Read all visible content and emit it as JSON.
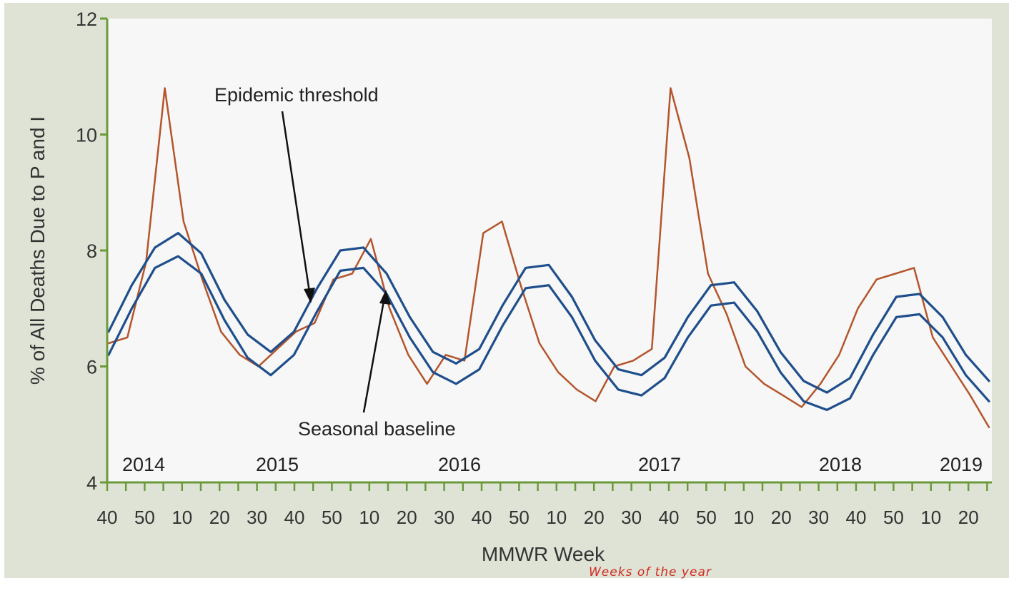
{
  "chart_data": {
    "type": "line",
    "ylabel": "% of All Deaths Due to P and I",
    "xlabel": "MMWR Week",
    "ylim": [
      4,
      12
    ],
    "y_ticks": [
      4,
      6,
      8,
      10,
      12
    ],
    "x_tick_labels": [
      "40",
      "50",
      "10",
      "20",
      "30",
      "40",
      "50",
      "10",
      "20",
      "30",
      "40",
      "50",
      "10",
      "20",
      "30",
      "40",
      "50",
      "10",
      "20",
      "30",
      "40",
      "50",
      "10",
      "20"
    ],
    "year_labels": [
      "2014",
      "2015",
      "2016",
      "2017",
      "2018",
      "2019"
    ],
    "grid": false,
    "series": [
      {
        "name": "Epidemic threshold",
        "color": "#1f4e8c",
        "values": [
          6.6,
          7.4,
          8.05,
          8.3,
          7.95,
          7.15,
          6.55,
          6.25,
          6.6,
          7.35,
          8.0,
          8.05,
          7.6,
          6.85,
          6.25,
          6.05,
          6.3,
          7.05,
          7.7,
          7.75,
          7.2,
          6.45,
          5.95,
          5.85,
          6.15,
          6.85,
          7.4,
          7.45,
          6.95,
          6.25,
          5.75,
          5.55,
          5.8,
          6.55,
          7.2,
          7.25,
          6.85,
          6.2,
          5.75
        ]
      },
      {
        "name": "Seasonal baseline",
        "color": "#1f4e8c",
        "values": [
          6.2,
          7.0,
          7.7,
          7.9,
          7.6,
          6.8,
          6.15,
          5.85,
          6.2,
          6.95,
          7.65,
          7.7,
          7.25,
          6.5,
          5.9,
          5.7,
          5.95,
          6.7,
          7.35,
          7.4,
          6.85,
          6.1,
          5.6,
          5.5,
          5.8,
          6.5,
          7.05,
          7.1,
          6.6,
          5.9,
          5.4,
          5.25,
          5.45,
          6.2,
          6.85,
          6.9,
          6.5,
          5.85,
          5.4
        ]
      },
      {
        "name": "",
        "color": "#b4552c",
        "values": [
          6.4,
          6.5,
          7.8,
          10.8,
          8.5,
          7.5,
          6.6,
          6.2,
          6.0,
          6.3,
          6.6,
          6.75,
          7.5,
          7.6,
          8.2,
          7.0,
          6.2,
          5.7,
          6.2,
          6.1,
          8.3,
          8.5,
          7.4,
          6.4,
          5.9,
          5.6,
          5.4,
          6.0,
          6.1,
          6.3,
          10.8,
          9.6,
          7.6,
          6.9,
          6.0,
          5.7,
          5.5,
          5.3,
          5.7,
          6.2,
          7.0,
          7.5,
          7.6,
          7.7,
          6.5,
          6.0,
          5.5,
          4.95
        ]
      }
    ],
    "annotations": [
      "Epidemic threshold",
      "Seasonal baseline"
    ],
    "handwritten_note": "Weeks of the year"
  }
}
